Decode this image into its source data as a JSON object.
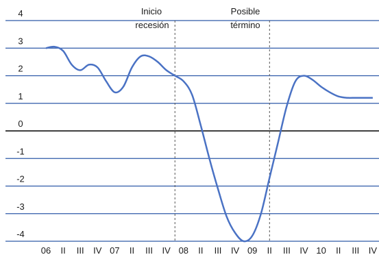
{
  "chart_data": {
    "type": "line",
    "title": "",
    "xlabel": "",
    "ylabel": "",
    "ylim": [
      -4,
      4
    ],
    "yticks": [
      4,
      3,
      2,
      1,
      0,
      -1,
      -2,
      -3,
      -4
    ],
    "grid": "horizontal",
    "line_color": "#4a72c4",
    "grid_color": "#2e5aa8",
    "zero_line_color": "#000000",
    "x_tick_labels": [
      "06",
      "II",
      "III",
      "IV",
      "07",
      "II",
      "III",
      "IV",
      "08",
      "II",
      "III",
      "IV",
      "09",
      "II",
      "III",
      "IV",
      "10",
      "II",
      "III",
      "IV"
    ],
    "series": [
      {
        "x": [
          0,
          0.5,
          1,
          1.5,
          2,
          2.5,
          3,
          3.5,
          4,
          4.5,
          5,
          5.5,
          6,
          6.5,
          7,
          7.5,
          8,
          8.5,
          9,
          9.5,
          10,
          10.5,
          11,
          11.5,
          12,
          12.5,
          13,
          13.5,
          14,
          14.5,
          15,
          15.5,
          16,
          16.5,
          17,
          17.5,
          18,
          18.5,
          19
        ],
        "values": [
          3.0,
          3.05,
          2.9,
          2.4,
          2.2,
          2.4,
          2.3,
          1.8,
          1.4,
          1.6,
          2.3,
          2.7,
          2.7,
          2.5,
          2.2,
          2.0,
          1.8,
          1.3,
          0.2,
          -1.0,
          -2.1,
          -3.1,
          -3.7,
          -4.0,
          -3.8,
          -3.0,
          -1.7,
          -0.4,
          0.9,
          1.8,
          2.0,
          1.85,
          1.6,
          1.4,
          1.25,
          1.2,
          1.2,
          1.2,
          1.2
        ]
      }
    ],
    "annotations": [
      {
        "lines": [
          "Inicio",
          "recesión"
        ],
        "x": 7.5
      },
      {
        "lines": [
          "Posible",
          "término"
        ],
        "x": 13
      }
    ]
  }
}
